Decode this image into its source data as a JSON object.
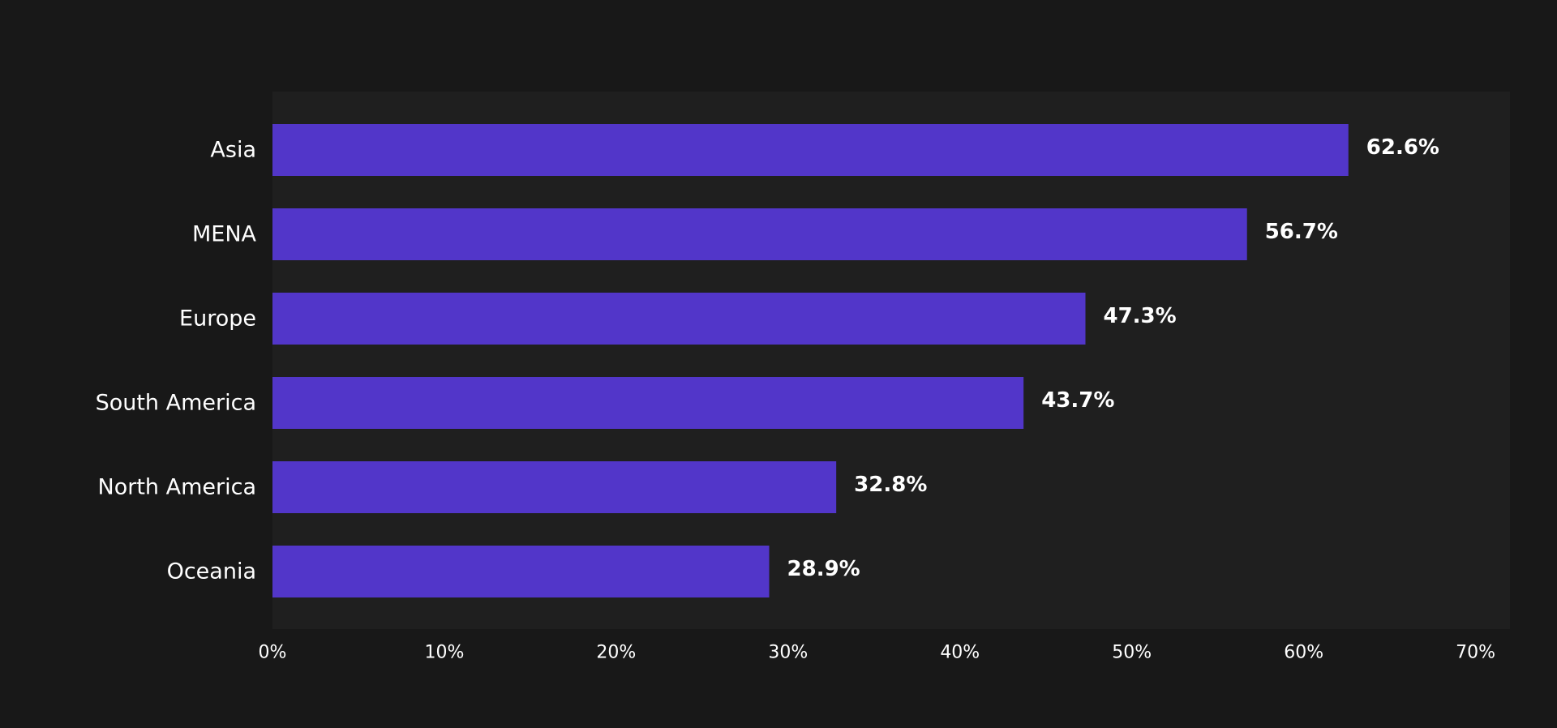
{
  "colors": {
    "page_background": "#181818",
    "plot_background": "#1f1f1f",
    "bar": "#5236c9",
    "text": "#ffffff"
  },
  "chart_data": {
    "type": "bar",
    "orientation": "horizontal",
    "categories": [
      "Asia",
      "MENA",
      "Europe",
      "South America",
      "North America",
      "Oceania"
    ],
    "values": [
      62.6,
      56.7,
      47.3,
      43.7,
      32.8,
      28.9
    ],
    "value_labels": [
      "62.6%",
      "56.7%",
      "47.3%",
      "43.7%",
      "32.8%",
      "28.9%"
    ],
    "title": "",
    "xlabel": "",
    "ylabel": "",
    "xlim": [
      0,
      72
    ],
    "x_ticks": [
      0,
      10,
      20,
      30,
      40,
      50,
      60,
      70
    ],
    "x_tick_labels": [
      "0%",
      "10%",
      "20%",
      "30%",
      "40%",
      "50%",
      "60%",
      "70%"
    ],
    "grid": false,
    "legend": "none"
  }
}
